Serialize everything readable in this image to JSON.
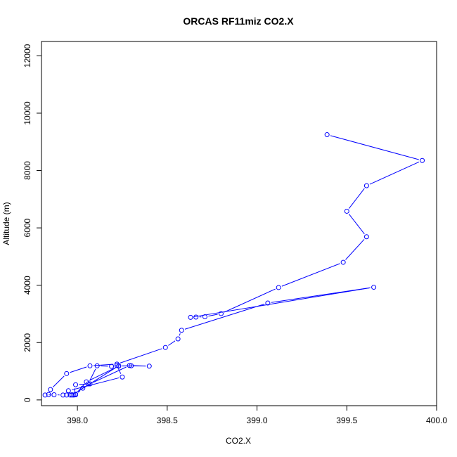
{
  "chart_data": {
    "type": "line",
    "title": "ORCAS RF11miz CO2.X",
    "xlabel": "CO2.X",
    "ylabel": "Altitude (m)",
    "xlim": [
      397.8,
      400.0
    ],
    "ylim": [
      -200,
      12500
    ],
    "x_ticks": [
      398.0,
      398.5,
      399.0,
      399.5,
      400.0
    ],
    "x_tick_labels": [
      "398.0",
      "398.5",
      "399.0",
      "399.5",
      "400.0"
    ],
    "y_ticks": [
      0,
      2000,
      4000,
      6000,
      8000,
      10000,
      12000
    ],
    "y_tick_labels": [
      "0",
      "2000",
      "4000",
      "6000",
      "8000",
      "10000",
      "12000"
    ],
    "grid": false,
    "legend": "none",
    "series": [
      {
        "color": "#0000ff",
        "marker": "open-circle",
        "points": [
          [
            399.39,
            9250
          ],
          [
            399.92,
            8350
          ],
          [
            399.61,
            7470
          ],
          [
            399.5,
            6580
          ],
          [
            399.61,
            5690
          ],
          [
            399.48,
            4800
          ],
          [
            399.12,
            3920
          ],
          [
            398.8,
            3010
          ],
          [
            398.71,
            2900
          ],
          [
            398.66,
            2890
          ],
          [
            398.63,
            2880
          ],
          [
            399.65,
            3930
          ],
          [
            399.06,
            3380
          ],
          [
            398.58,
            2430
          ],
          [
            398.56,
            2130
          ],
          [
            398.49,
            1830
          ],
          [
            398.22,
            1250
          ],
          [
            398.07,
            1190
          ],
          [
            397.94,
            920
          ],
          [
            397.85,
            360
          ],
          [
            397.84,
            190
          ],
          [
            397.82,
            170
          ],
          [
            397.87,
            180
          ],
          [
            397.92,
            170
          ],
          [
            397.94,
            170
          ],
          [
            397.96,
            170
          ],
          [
            397.99,
            180
          ],
          [
            398.03,
            410
          ],
          [
            398.06,
            560
          ],
          [
            398.11,
            1190
          ],
          [
            398.19,
            1170
          ],
          [
            398.22,
            1200
          ],
          [
            398.25,
            800
          ],
          [
            397.95,
            320
          ],
          [
            397.97,
            180
          ],
          [
            397.98,
            170
          ],
          [
            397.99,
            530
          ],
          [
            398.07,
            560
          ],
          [
            398.29,
            1200
          ],
          [
            398.4,
            1180
          ],
          [
            398.23,
            1190
          ],
          [
            397.97,
            170
          ],
          [
            397.99,
            200
          ],
          [
            398.05,
            630
          ],
          [
            398.23,
            1180
          ],
          [
            398.3,
            1190
          ]
        ]
      }
    ]
  }
}
